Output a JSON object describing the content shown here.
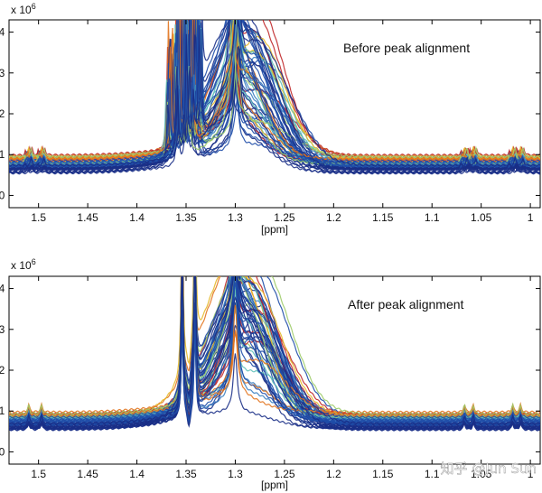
{
  "watermark": "知乎 @Jun Sun",
  "chart_data": [
    {
      "type": "line",
      "annotation": "Before peak alignment",
      "xlabel": "[ppm]",
      "ylabel_exponent": "x 10^6",
      "exp_base": "x 10",
      "exp_power": "6",
      "xlim": [
        1.53,
        0.99
      ],
      "ylim": [
        -0.3,
        4.3
      ],
      "xticks": [
        1.5,
        1.45,
        1.4,
        1.35,
        1.3,
        1.25,
        1.2,
        1.15,
        1.1,
        1.05,
        1
      ],
      "xtick_labels": [
        "1.5",
        "1.45",
        "1.4",
        "1.35",
        "1.3",
        "1.25",
        "1.2",
        "1.15",
        "1.1",
        "1.05",
        "1"
      ],
      "yticks": [
        0,
        1,
        2,
        3,
        4
      ],
      "ytick_labels": [
        "0",
        "1",
        "2",
        "3",
        "4"
      ],
      "n_spectra": 60,
      "aligned": false,
      "baseline_range": [
        0.5,
        1.0
      ],
      "main_peak_ppm": 1.3,
      "main_peak_max": 4.3,
      "doublet_peaks_ppm": [
        1.354,
        1.341
      ],
      "small_doublet_ppm": [
        1.51,
        1.497,
        1.067,
        1.058,
        1.018,
        1.01
      ]
    },
    {
      "type": "line",
      "annotation": "After peak alignment",
      "xlabel": "[ppm]",
      "ylabel_exponent": "x 10^6",
      "exp_base": "x 10",
      "exp_power": "6",
      "xlim": [
        1.53,
        0.99
      ],
      "ylim": [
        -0.3,
        4.3
      ],
      "xticks": [
        1.5,
        1.45,
        1.4,
        1.35,
        1.3,
        1.25,
        1.2,
        1.15,
        1.1,
        1.05,
        1
      ],
      "xtick_labels": [
        "1.5",
        "1.45",
        "1.4",
        "1.35",
        "1.3",
        "1.25",
        "1.2",
        "1.15",
        "1.1",
        "1.05",
        "1"
      ],
      "yticks": [
        0,
        1,
        2,
        3,
        4
      ],
      "ytick_labels": [
        "0",
        "1",
        "2",
        "3",
        "4"
      ],
      "n_spectra": 60,
      "aligned": true,
      "baseline_range": [
        0.5,
        1.0
      ],
      "main_peak_ppm": 1.3,
      "main_peak_max": 4.3,
      "doublet_peaks_ppm": [
        1.354,
        1.341
      ],
      "small_doublet_ppm": [
        1.51,
        1.497,
        1.067,
        1.058,
        1.018,
        1.01
      ]
    }
  ]
}
